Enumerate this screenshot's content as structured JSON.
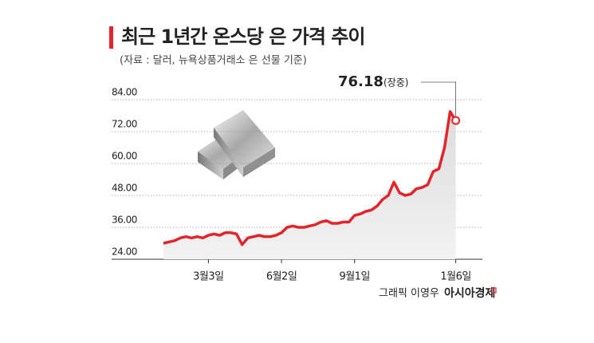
{
  "chart_data": {
    "type": "line",
    "title": "최근 1년간 온스당 은 가격 추이",
    "subtitle": "(자료 : 달러, 뉴욕상품거래소 은 선물 기준)",
    "categories": [
      null,
      null,
      null,
      null,
      null,
      null,
      null,
      null,
      "3월3일",
      null,
      null,
      null,
      null,
      null,
      null,
      null,
      null,
      null,
      null,
      null,
      null,
      "6월2일",
      null,
      null,
      null,
      null,
      null,
      null,
      null,
      null,
      null,
      null,
      null,
      null,
      "9월1일",
      null,
      null,
      null,
      null,
      null,
      null,
      null,
      null,
      null,
      null,
      null,
      null,
      null,
      null,
      null,
      null,
      null,
      "1월6일"
    ],
    "values": [
      30,
      30.5,
      31,
      32,
      32.5,
      32,
      32.5,
      32,
      33,
      33.5,
      33,
      34,
      34,
      33.5,
      29.5,
      32,
      32.5,
      33,
      32.5,
      32.5,
      33,
      34,
      36,
      36.5,
      36,
      36,
      36.5,
      37,
      38,
      38.5,
      37.5,
      37.5,
      38,
      38,
      40.5,
      41,
      42,
      42.5,
      44,
      46.5,
      48,
      53,
      49,
      48,
      48.5,
      50.5,
      51,
      52,
      57,
      58,
      66,
      79.5,
      76.18
    ],
    "color": "#e3242b",
    "annotation": "(장중)",
    "ylim": [
      24,
      84
    ],
    "yticks": [
      {
        "value": 24,
        "label": "24.00"
      },
      {
        "value": 36,
        "label": "36.00"
      },
      {
        "value": 48,
        "label": "48.00"
      },
      {
        "value": 60,
        "label": "60.00"
      },
      {
        "value": 72,
        "label": "72.00"
      },
      {
        "value": 84,
        "label": "84.00"
      }
    ],
    "grid": true,
    "credit": "그래픽 이영우",
    "source": "아시아경제"
  }
}
